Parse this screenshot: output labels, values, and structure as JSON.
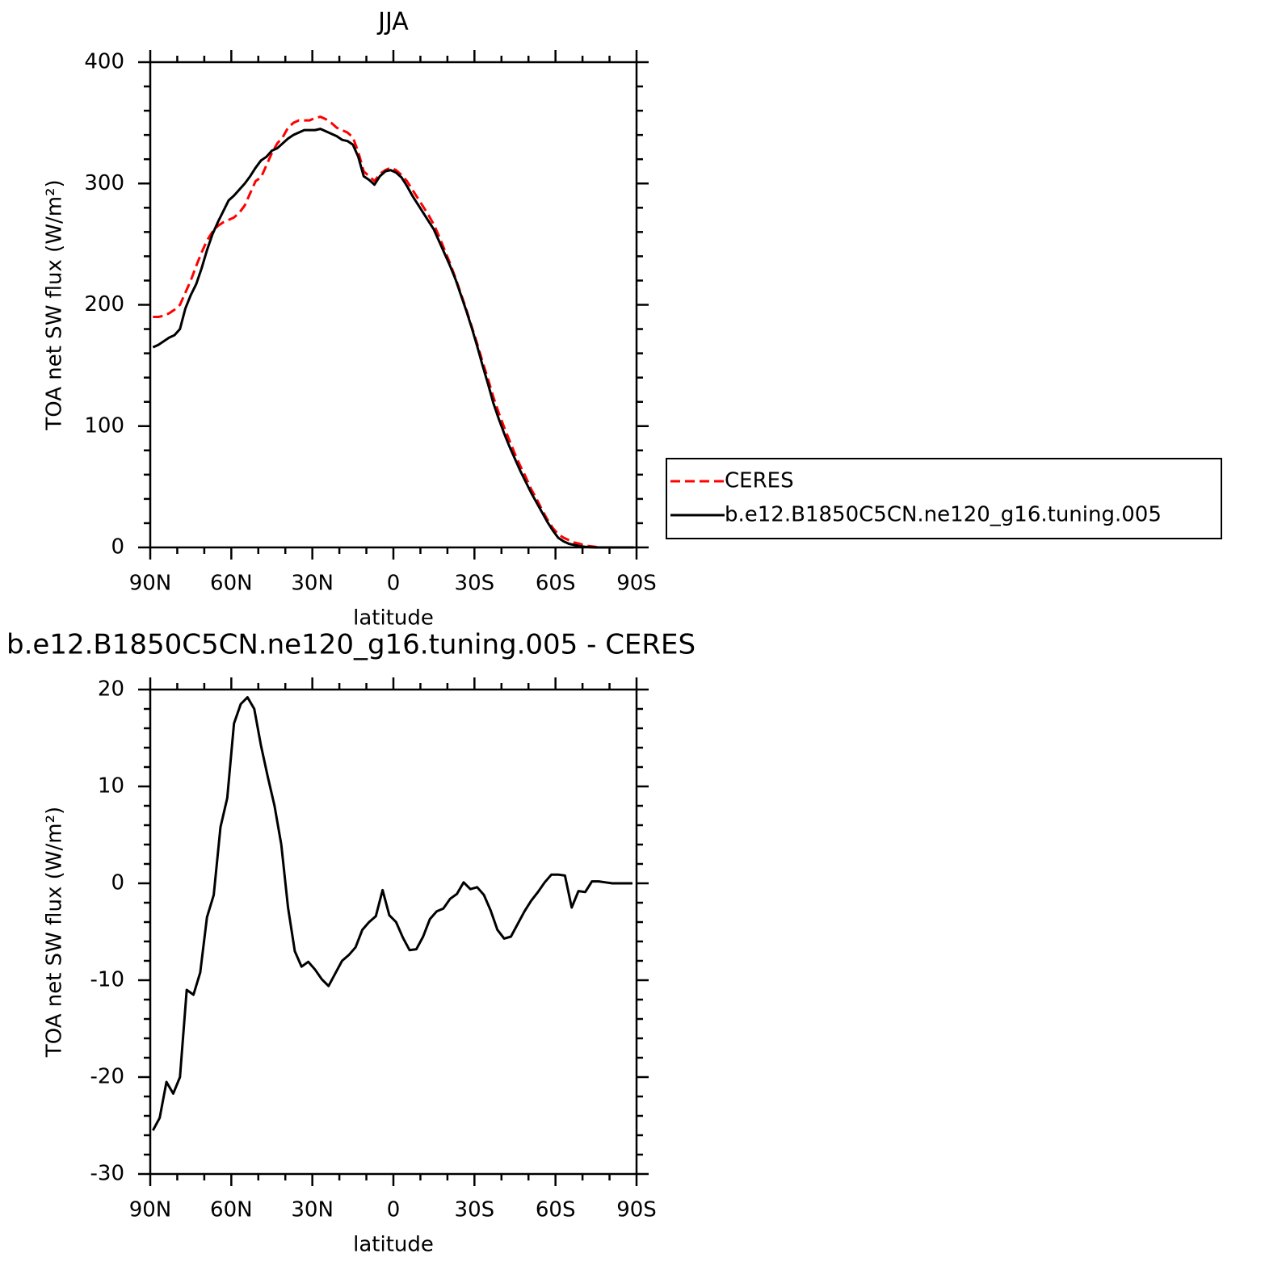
{
  "chart_data": [
    {
      "type": "line",
      "title": "JJA",
      "xlabel": "latitude",
      "ylabel": "TOA net SW flux (W/m²)",
      "xlim": [
        90,
        -90
      ],
      "xticks": [
        {
          "value": 90,
          "label": "90N"
        },
        {
          "value": 60,
          "label": "60N"
        },
        {
          "value": 30,
          "label": "30N"
        },
        0,
        {
          "value": -30,
          "label": "30S"
        },
        {
          "value": -60,
          "label": "60S"
        },
        {
          "value": -90,
          "label": "90S"
        }
      ],
      "xminorticks": [
        80,
        70,
        50,
        40,
        20,
        10,
        -10,
        -20,
        -40,
        -50,
        -70,
        -80
      ],
      "ylim": [
        0,
        400
      ],
      "yticks": [
        0,
        100,
        200,
        300,
        400
      ],
      "yminorticks": [
        20,
        40,
        60,
        80,
        120,
        140,
        160,
        180,
        220,
        240,
        260,
        280,
        320,
        340,
        360,
        380
      ],
      "legend": "right",
      "x": [
        89,
        87,
        85,
        83,
        81,
        79,
        77,
        75,
        73,
        71,
        69,
        67,
        65,
        63,
        61,
        59,
        57,
        55,
        53,
        51,
        49,
        47,
        45,
        43,
        41,
        39,
        37,
        35,
        33,
        31,
        29,
        27,
        25,
        23,
        21,
        19,
        17,
        15,
        13,
        11,
        9,
        7,
        5,
        3,
        1,
        -1,
        -3,
        -5,
        -7,
        -9,
        -11,
        -13,
        -15,
        -17,
        -19,
        -21,
        -23,
        -25,
        -27,
        -29,
        -31,
        -33,
        -35,
        -37,
        -39,
        -41,
        -43,
        -45,
        -47,
        -49,
        -51,
        -53,
        -55,
        -57,
        -59,
        -61,
        -63,
        -65,
        -67,
        -69,
        -71,
        -73,
        -75,
        -77,
        -79,
        -81,
        -83,
        -85,
        -87,
        -89
      ],
      "series": [
        {
          "name": "CERES",
          "color": "#ff0000",
          "dash": "dashed",
          "values": [
            190,
            190,
            191,
            193,
            196,
            200,
            210,
            220,
            232,
            243,
            253,
            260,
            265,
            268,
            270,
            272,
            276,
            282,
            292,
            302,
            305,
            315,
            325,
            333,
            338,
            346,
            350,
            352,
            352,
            352,
            354,
            355,
            353,
            350,
            346,
            344,
            342,
            338,
            326,
            310,
            306,
            302,
            308,
            311,
            313,
            311,
            307,
            302,
            295,
            288,
            281,
            274,
            266,
            256,
            245,
            234,
            222,
            209,
            196,
            182,
            168,
            153,
            139,
            124,
            111,
            99,
            88,
            77,
            67,
            58,
            48,
            40,
            31,
            23,
            16,
            11,
            8,
            6,
            4,
            3,
            1.5,
            1,
            0.4,
            0,
            0,
            0,
            0,
            0,
            0,
            0
          ]
        },
        {
          "name": "b.e12.B1850C5CN.ne120_g16.tuning.005",
          "color": "#000000",
          "values": [
            165,
            167,
            170,
            173,
            175,
            180,
            197,
            208,
            217,
            230,
            245,
            258,
            268,
            277,
            286,
            290,
            295,
            300,
            306,
            313,
            319,
            322,
            327,
            329,
            333,
            337,
            340,
            342,
            344,
            344,
            344,
            345,
            343,
            341,
            339,
            336,
            335,
            332,
            322,
            306,
            303,
            299,
            306,
            310,
            311,
            309,
            305,
            298,
            290,
            283,
            276,
            269,
            262,
            252,
            242,
            232,
            221,
            208,
            195,
            181,
            166,
            150,
            135,
            119,
            106,
            94,
            83,
            73,
            63,
            54,
            45,
            37,
            29,
            21,
            14,
            8,
            5,
            3,
            2,
            1,
            0.5,
            0.2,
            0,
            0,
            0,
            0,
            0,
            0,
            0,
            0
          ]
        }
      ]
    },
    {
      "type": "line",
      "title": "b.e12.B1850C5CN.ne120_g16.tuning.005 - CERES",
      "xlabel": "latitude",
      "ylabel": "TOA net SW flux (W/m²)",
      "xlim": [
        90,
        -90
      ],
      "xticks": [
        {
          "value": 90,
          "label": "90N"
        },
        {
          "value": 60,
          "label": "60N"
        },
        {
          "value": 30,
          "label": "30N"
        },
        0,
        {
          "value": -30,
          "label": "30S"
        },
        {
          "value": -60,
          "label": "60S"
        },
        {
          "value": -90,
          "label": "90S"
        }
      ],
      "xminorticks": [
        80,
        70,
        50,
        40,
        20,
        10,
        -10,
        -20,
        -40,
        -50,
        -70,
        -80
      ],
      "ylim": [
        -30,
        20
      ],
      "yticks": [
        -30,
        -20,
        -10,
        0,
        10,
        20
      ],
      "yminorticks": [
        -28,
        -26,
        -24,
        -22,
        -18,
        -16,
        -14,
        -12,
        -8,
        -6,
        -4,
        -2,
        2,
        4,
        6,
        8,
        12,
        14,
        16,
        18
      ],
      "x": [
        89,
        86.5,
        84,
        81.5,
        79,
        76.5,
        74,
        71.5,
        69,
        66.5,
        64,
        61.5,
        59,
        56.5,
        54,
        51.5,
        49,
        46.5,
        44,
        41.5,
        39,
        36.5,
        34,
        31.5,
        29,
        26.5,
        24,
        21.5,
        19,
        16.5,
        14,
        11.5,
        9,
        6.5,
        4,
        1.5,
        -1,
        -3.5,
        -6,
        -8.5,
        -11,
        -13.5,
        -16,
        -18.5,
        -21,
        -23.5,
        -26,
        -28.5,
        -31,
        -33.5,
        -36,
        -38.5,
        -41,
        -43.5,
        -46,
        -48.5,
        -51,
        -53.5,
        -56,
        -58.5,
        -61,
        -63.5,
        -66,
        -68.5,
        -71,
        -73.5,
        -76,
        -78.5,
        -81,
        -83.5,
        -86,
        -88.5
      ],
      "series": [
        {
          "color": "#000000",
          "values": [
            -25.5,
            -24.2,
            -20.5,
            -21.7,
            -20,
            -11,
            -11.5,
            -9.2,
            -3.5,
            -1.2,
            5.8,
            8.8,
            16.5,
            18.5,
            19.2,
            18,
            14.2,
            11,
            8,
            4,
            -2.5,
            -7,
            -8.6,
            -8.1,
            -8.9,
            -9.9,
            -10.6,
            -9.3,
            -8,
            -7.4,
            -6.6,
            -4.8,
            -4,
            -3.4,
            -0.7,
            -3.3,
            -4,
            -5.6,
            -6.9,
            -6.8,
            -5.5,
            -3.7,
            -2.9,
            -2.6,
            -1.6,
            -1.1,
            0.1,
            -0.6,
            -0.4,
            -1.2,
            -2.8,
            -4.8,
            -5.7,
            -5.5,
            -4.2,
            -2.9,
            -1.8,
            -0.9,
            0.1,
            0.9,
            0.9,
            0.8,
            -2.5,
            -0.8,
            -0.9,
            0.2,
            0.2,
            0.1,
            0,
            0,
            0,
            0
          ]
        }
      ]
    }
  ]
}
